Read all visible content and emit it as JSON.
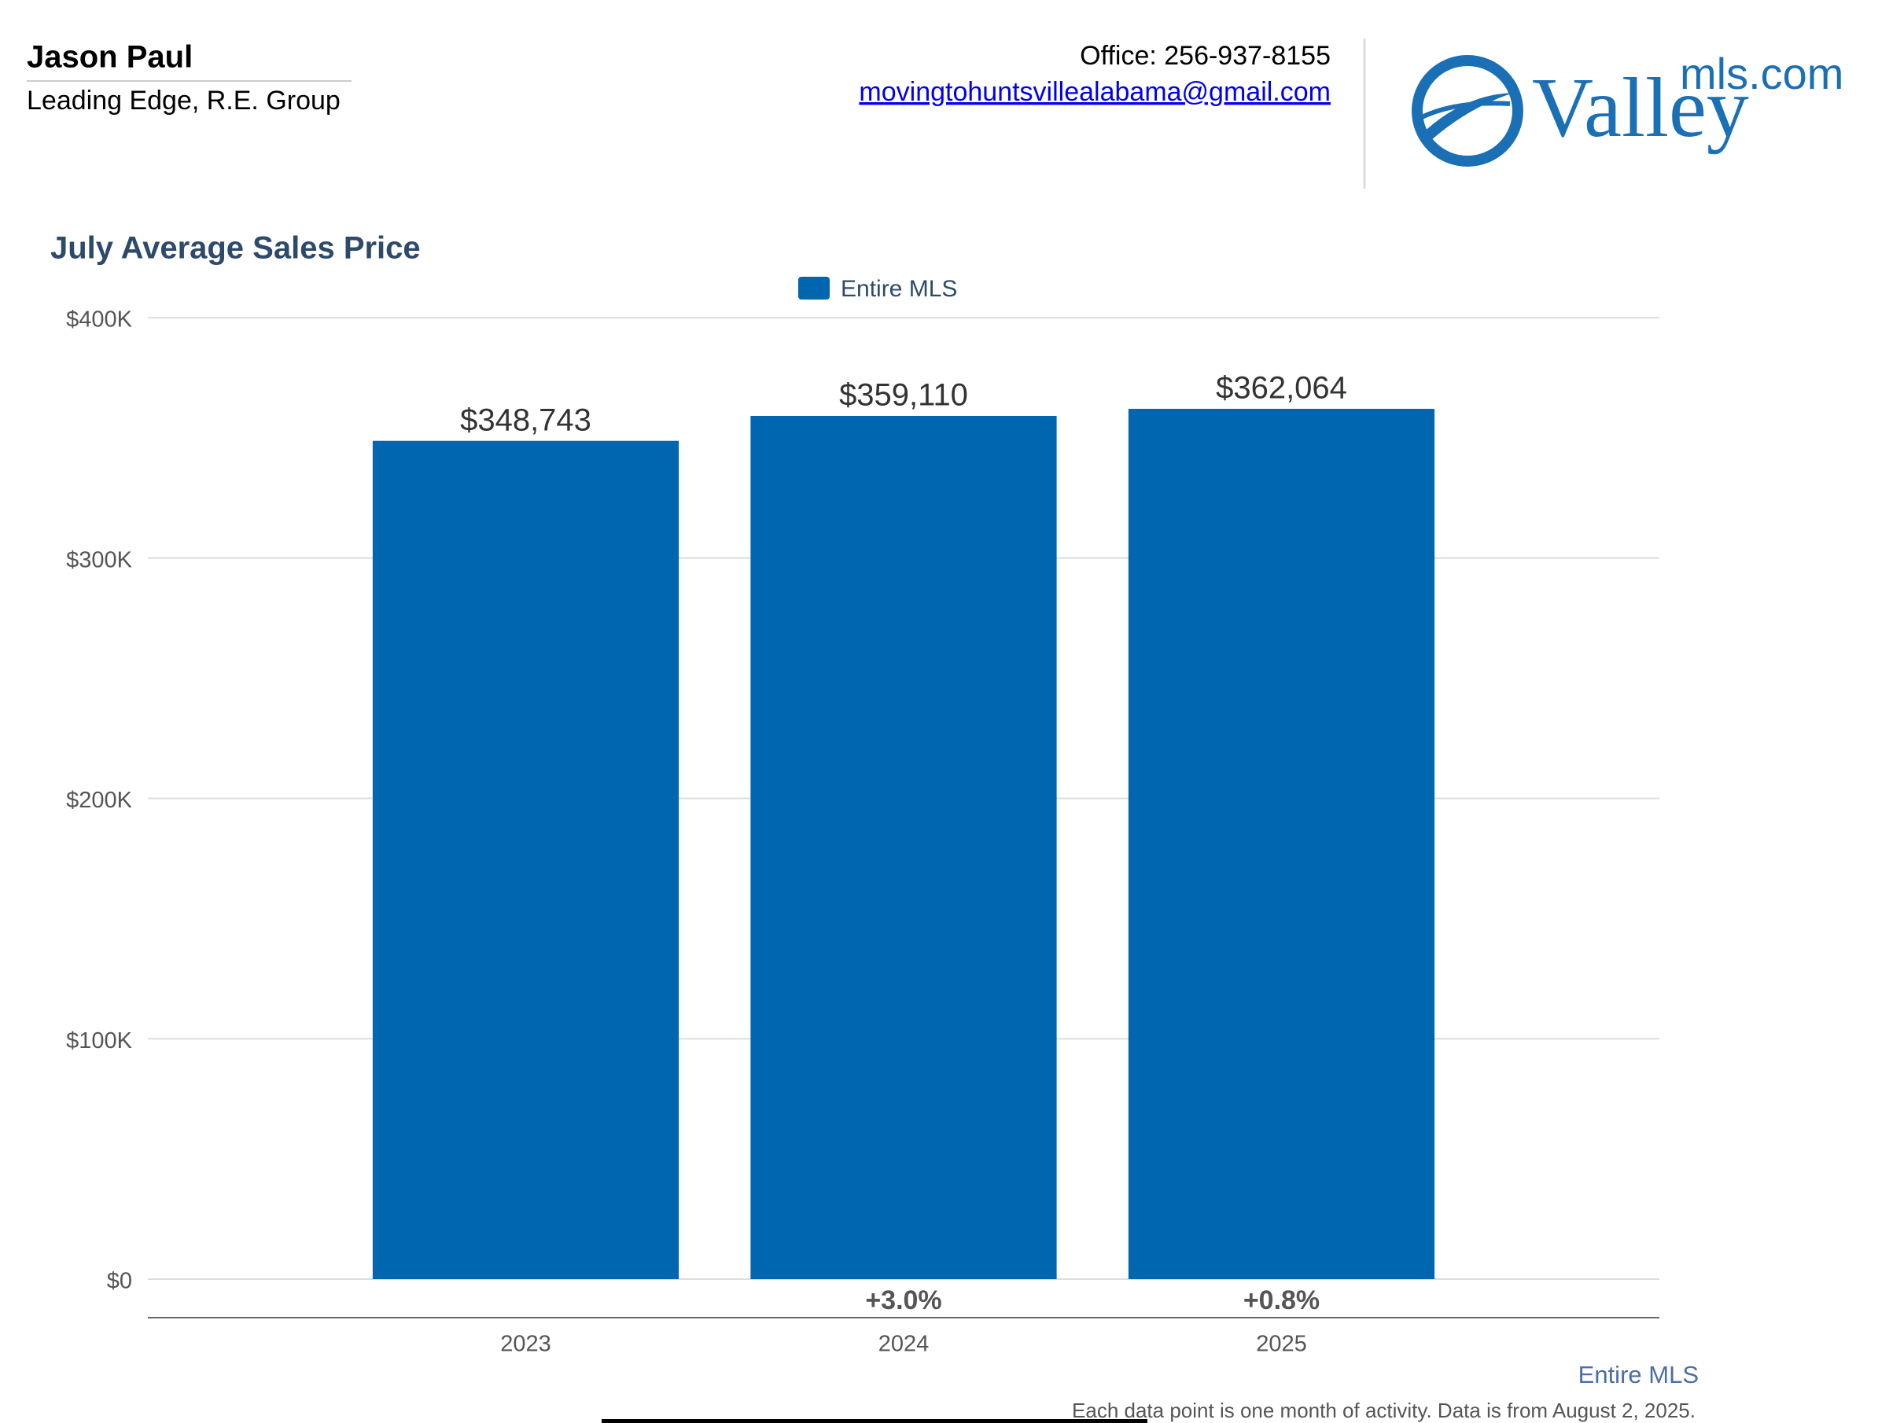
{
  "header": {
    "name": "Jason Paul",
    "company": "Leading Edge, R.E. Group",
    "office": "Office: 256-937-8155",
    "email": "movingtohuntsvillealabama@gmail.com"
  },
  "logo": {
    "main": "Valley",
    "suffix": "mls.com"
  },
  "chart_data": {
    "type": "bar",
    "title": "July Average Sales Price",
    "categories": [
      "2023",
      "2024",
      "2025"
    ],
    "series": [
      {
        "name": "Entire MLS",
        "color": "#0066b0",
        "values": [
          348743,
          359110,
          362064
        ],
        "value_labels": [
          "$348,743",
          "$359,110",
          "$362,064"
        ]
      }
    ],
    "change_labels": [
      null,
      "+3.0%",
      "+0.8%"
    ],
    "ylim": [
      0,
      400000
    ],
    "yticks": [
      {
        "value": 0,
        "label": "$0"
      },
      {
        "value": 100000,
        "label": "$100K"
      },
      {
        "value": 200000,
        "label": "$200K"
      },
      {
        "value": 300000,
        "label": "$300K"
      },
      {
        "value": 400000,
        "label": "$400K"
      }
    ],
    "grid": true
  },
  "footer": {
    "source": "Entire MLS",
    "note": "Each data point is one month of activity. Data is from August 2, 2025."
  }
}
